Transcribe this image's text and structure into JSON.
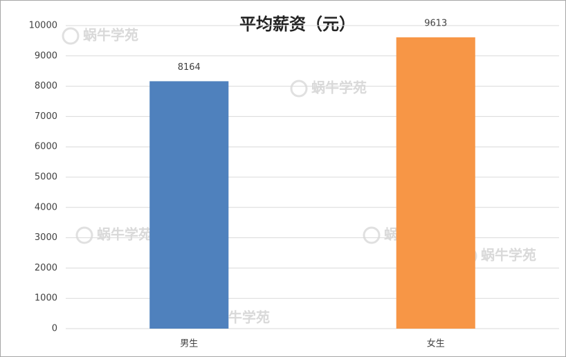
{
  "chart_data": {
    "type": "bar",
    "title": "平均薪资（元）",
    "categories": [
      "男生",
      "女生"
    ],
    "values": [
      8164,
      9613
    ],
    "colors": [
      "#4f81bd",
      "#f79646"
    ],
    "ylim": [
      0,
      10000
    ],
    "yticks": [
      0,
      1000,
      2000,
      3000,
      4000,
      5000,
      6000,
      7000,
      8000,
      9000,
      10000
    ],
    "grid": true,
    "data_labels": true,
    "watermark": "蜗牛学苑"
  }
}
